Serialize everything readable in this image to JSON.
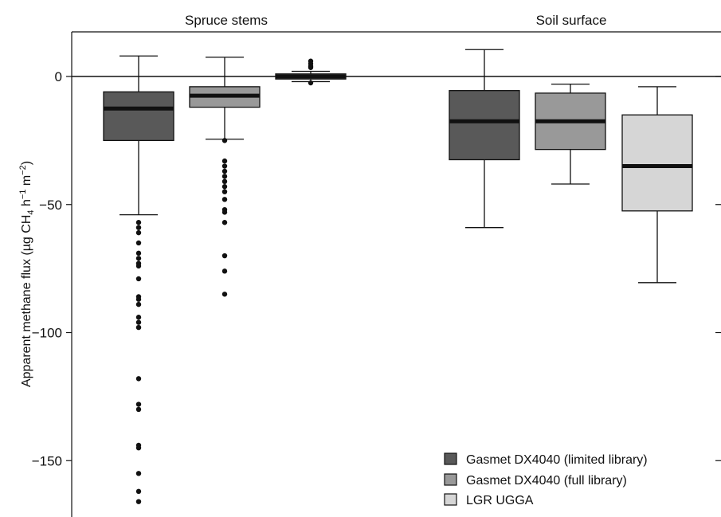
{
  "chart_data": {
    "type": "box",
    "ylabel": {
      "prefix": "Apparent methane flux (µg CH",
      "sub": "4",
      "mid1": " h",
      "sup1": "−1",
      "mid2": " m",
      "sup2": "−2",
      "suffix": ")"
    },
    "ylim": [
      -170,
      18
    ],
    "yticks": [
      {
        "value": 0,
        "label": "0"
      },
      {
        "value": -50,
        "label": "−50"
      },
      {
        "value": -100,
        "label": "−100"
      },
      {
        "value": -150,
        "label": "−150"
      }
    ],
    "zero_line": 0,
    "grid": false,
    "legend_position": "bottom-right",
    "panels": [
      {
        "title": "Spruce stems",
        "boxes": [
          {
            "series": 0,
            "whisker_high": 8,
            "q3": -6,
            "median": -12.5,
            "q1": -25,
            "whisker_low": -54,
            "outliers": [
              -57,
              -59,
              -61,
              -65,
              -69,
              -71,
              -73,
              -74,
              -79,
              -86,
              -87,
              -89,
              -94,
              -96,
              -98,
              -118,
              -128,
              -130,
              -144,
              -145,
              -155,
              -162,
              -166
            ]
          },
          {
            "series": 1,
            "whisker_high": 7.5,
            "q3": -4,
            "median": -7.5,
            "q1": -12,
            "whisker_low": -24.5,
            "outliers": [
              -25,
              -33,
              -35,
              -37,
              -39,
              -41,
              -43,
              -45,
              -48,
              -52,
              -53,
              -57,
              -70,
              -76,
              -85
            ]
          },
          {
            "series": 2,
            "whisker_high": 2,
            "q3": 1,
            "median": 0,
            "q1": -1,
            "whisker_low": -2,
            "outliers": [
              6,
              5,
              4,
              3.5,
              -2.5
            ]
          }
        ]
      },
      {
        "title": "Soil surface",
        "boxes": [
          {
            "series": 0,
            "whisker_high": 10.5,
            "q3": -5.5,
            "median": -17.5,
            "q1": -32.5,
            "whisker_low": -59,
            "outliers": []
          },
          {
            "series": 1,
            "whisker_high": -3,
            "q3": -6.5,
            "median": -17.5,
            "q1": -28.5,
            "whisker_low": -42,
            "outliers": []
          },
          {
            "series": 2,
            "whisker_high": -4,
            "q3": -15,
            "median": -35,
            "q1": -52.5,
            "whisker_low": -80.5,
            "outliers": []
          }
        ]
      }
    ],
    "series": [
      {
        "name": "Gasmet DX4040 (limited library)",
        "color": "#595959"
      },
      {
        "name": "Gasmet DX4040 (full library)",
        "color": "#999999"
      },
      {
        "name": "LGR UGGA",
        "color": "#d6d6d6"
      }
    ]
  }
}
